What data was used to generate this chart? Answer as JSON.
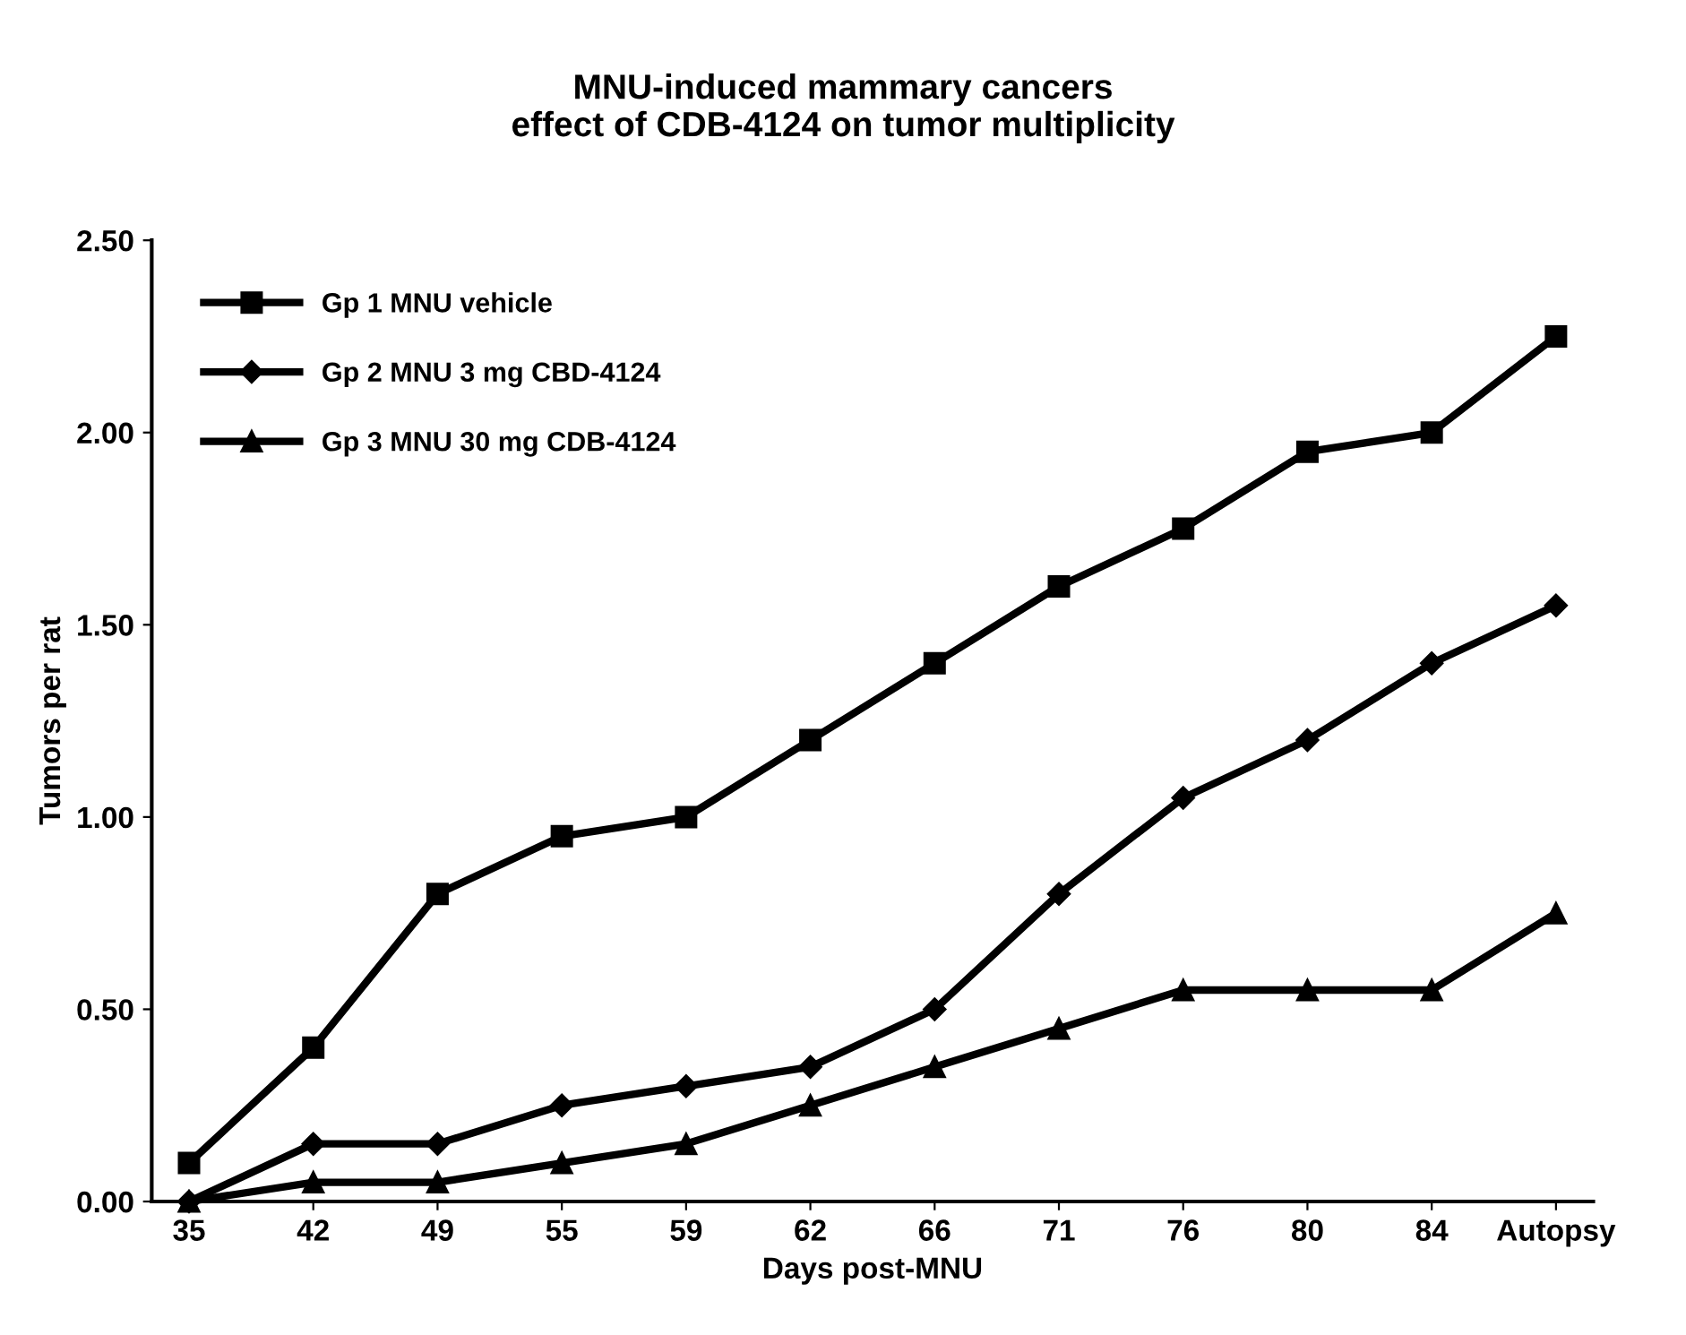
{
  "chart_data": {
    "type": "line",
    "title": "MNU-induced mammary cancers\neffect of CDB-4124 on tumor multiplicity",
    "xlabel": "Days post-MNU",
    "ylabel": "Tumors per rat",
    "categories": [
      "35",
      "42",
      "49",
      "55",
      "59",
      "62",
      "66",
      "71",
      "76",
      "80",
      "84",
      "Autopsy"
    ],
    "series": [
      {
        "name": "Gp 1 MNU vehicle",
        "color": "#000000",
        "marker": "square",
        "values": [
          0.1,
          0.4,
          0.8,
          0.95,
          1.0,
          1.2,
          1.4,
          1.6,
          1.75,
          1.95,
          2.0,
          2.25
        ]
      },
      {
        "name": "Gp 2 MNU 3 mg CBD-4124",
        "color": "#000000",
        "marker": "diamond",
        "values": [
          0.0,
          0.15,
          0.15,
          0.25,
          0.3,
          0.35,
          0.5,
          0.8,
          1.05,
          1.2,
          1.4,
          1.55
        ]
      },
      {
        "name": "Gp 3 MNU 30 mg CDB-4124",
        "color": "#000000",
        "marker": "triangle",
        "values": [
          0.0,
          0.05,
          0.05,
          0.1,
          0.15,
          0.25,
          0.35,
          0.45,
          0.55,
          0.55,
          0.55,
          0.75
        ]
      }
    ],
    "ylim": [
      0,
      2.5
    ],
    "yticks": [
      {
        "value": 0,
        "label": "0.00"
      },
      {
        "value": 0.5,
        "label": "0.50"
      },
      {
        "value": 1.0,
        "label": "1.00"
      },
      {
        "value": 1.5,
        "label": "1.50"
      },
      {
        "value": 2.0,
        "label": "2.00"
      },
      {
        "value": 2.5,
        "label": "2.50"
      }
    ],
    "grid": false,
    "legend": "top left",
    "line_style": "solid"
  }
}
